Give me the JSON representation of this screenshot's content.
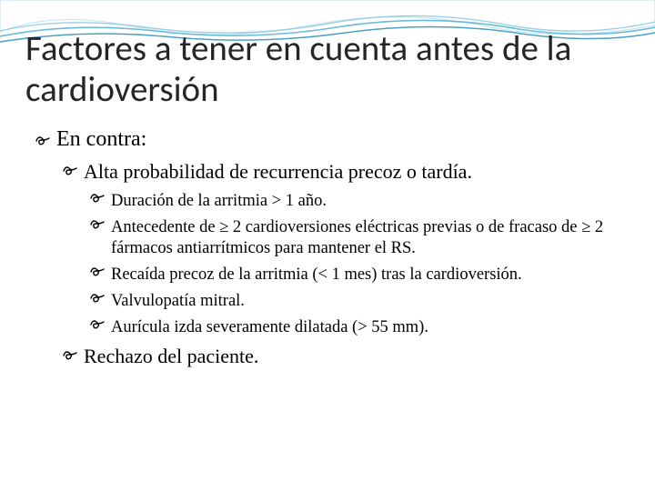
{
  "colors": {
    "wave_light": "#a8d5e8",
    "wave_mid": "#5bb5d4",
    "wave_dark": "#2e8fb8",
    "title_color": "#262626",
    "text_color": "#000000",
    "background": "#ffffff"
  },
  "title": "Factores a tener en cuenta antes de la cardioversión",
  "bullets": {
    "level1": [
      {
        "text": "En contra:"
      }
    ],
    "level2_group1": [
      {
        "text": "Alta probabilidad de recurrencia precoz o tardía."
      }
    ],
    "level3_group1": [
      {
        "text": "Duración de la arritmia > 1 año."
      },
      {
        "text": "Antecedente de ≥ 2 cardioversiones eléctricas previas o de fracaso de ≥ 2 fármacos antiarrítmicos para mantener el RS."
      },
      {
        "text": "Recaída precoz de la arritmia (< 1 mes) tras la cardioversión."
      },
      {
        "text": "Valvulopatía mitral."
      },
      {
        "text": "Aurícula izda severamente dilatada (> 55 mm)."
      }
    ],
    "level2_group2": [
      {
        "text": "Rechazo del paciente."
      }
    ]
  },
  "bullet_glyph": "✐",
  "typography": {
    "title_fontsize": 39,
    "level1_fontsize": 24,
    "level2_fontsize": 22,
    "level3_fontsize": 18.5
  }
}
